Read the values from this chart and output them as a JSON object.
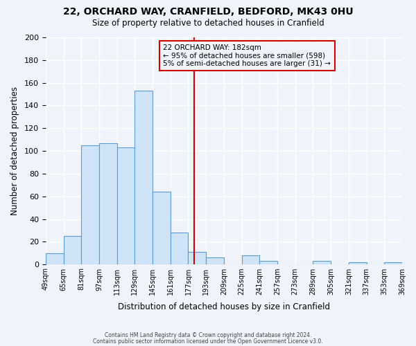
{
  "title": "22, ORCHARD WAY, CRANFIELD, BEDFORD, MK43 0HU",
  "subtitle": "Size of property relative to detached houses in Cranfield",
  "xlabel": "Distribution of detached houses by size in Cranfield",
  "ylabel": "Number of detached properties",
  "bin_labels": [
    "49sqm",
    "65sqm",
    "81sqm",
    "97sqm",
    "113sqm",
    "129sqm",
    "145sqm",
    "161sqm",
    "177sqm",
    "193sqm",
    "209sqm",
    "225sqm",
    "241sqm",
    "257sqm",
    "273sqm",
    "289sqm",
    "305sqm",
    "321sqm",
    "337sqm",
    "353sqm",
    "369sqm"
  ],
  "bin_values": [
    10,
    25,
    105,
    107,
    103,
    153,
    64,
    28,
    11,
    6,
    0,
    8,
    3,
    0,
    0,
    3,
    0,
    2,
    0,
    2
  ],
  "bin_edges": [
    49,
    65,
    81,
    97,
    113,
    129,
    145,
    161,
    177,
    193,
    209,
    225,
    241,
    257,
    273,
    289,
    305,
    321,
    337,
    353,
    369
  ],
  "property_value": 182,
  "annotation_title": "22 ORCHARD WAY: 182sqm",
  "annotation_line1": "← 95% of detached houses are smaller (598)",
  "annotation_line2": "5% of semi-detached houses are larger (31) →",
  "bar_facecolor": "#d0e4f7",
  "bar_edgecolor": "#5b9bd5",
  "vline_color": "#cc0000",
  "annotation_box_edgecolor": "#cc0000",
  "background_color": "#f0f4fa",
  "grid_color": "#ffffff",
  "ylim": [
    0,
    200
  ],
  "yticks": [
    0,
    20,
    40,
    60,
    80,
    100,
    120,
    140,
    160,
    180,
    200
  ],
  "footer_line1": "Contains HM Land Registry data © Crown copyright and database right 2024.",
  "footer_line2": "Contains public sector information licensed under the Open Government Licence v3.0."
}
